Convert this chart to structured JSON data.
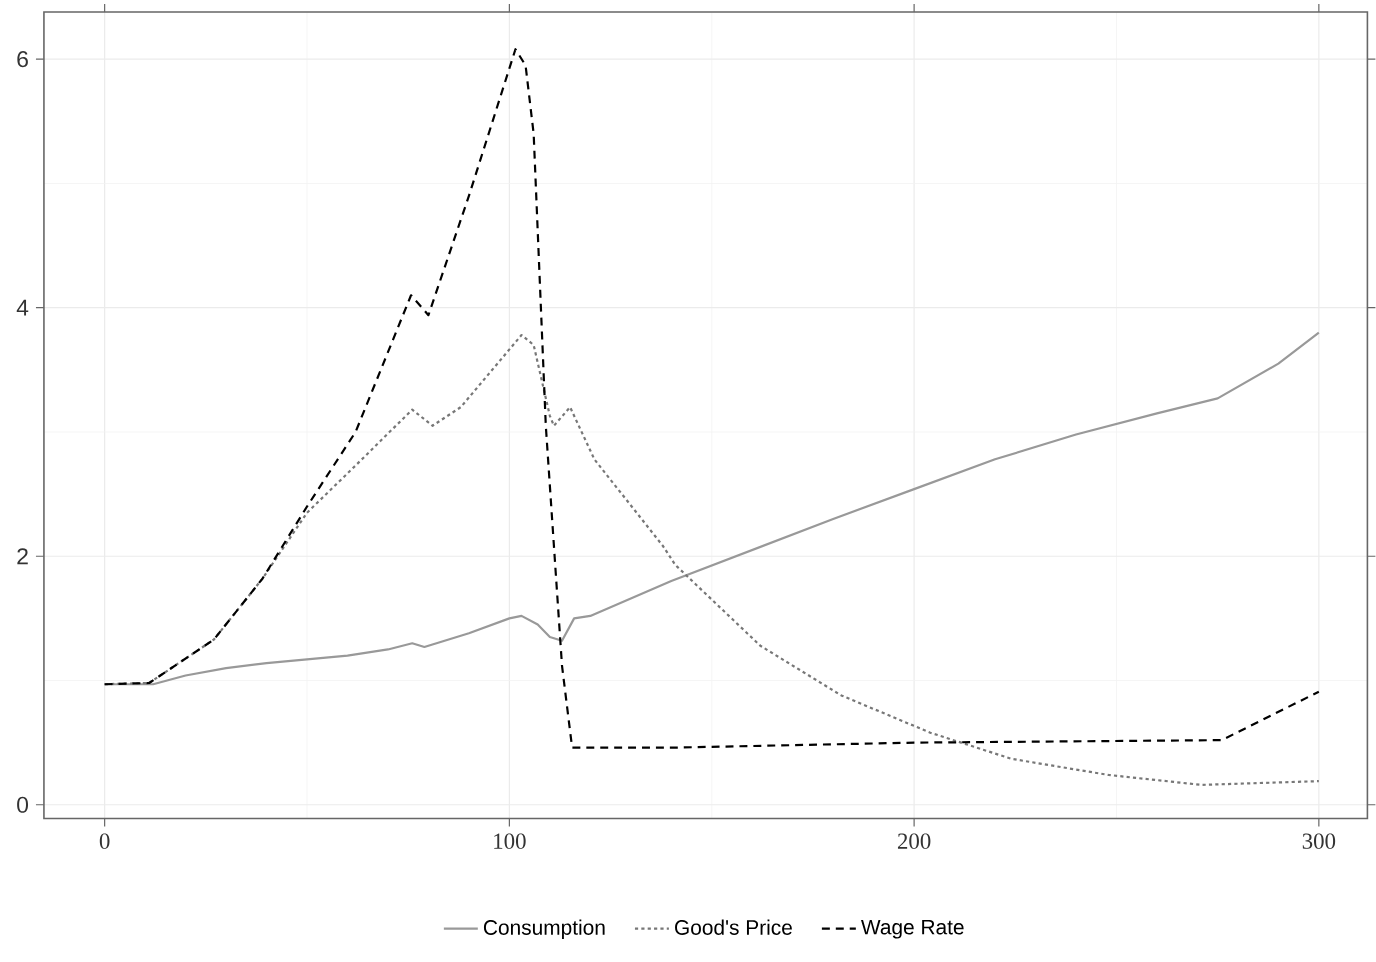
{
  "chart_data": {
    "type": "line",
    "xlim": [
      -15,
      312
    ],
    "ylim": [
      -0.11,
      6.38
    ],
    "xticks": [
      0,
      100,
      200,
      300
    ],
    "yticks": [
      0,
      2,
      4,
      6
    ],
    "grid": true,
    "legend": "bottom",
    "series": [
      {
        "name": "Consumption",
        "color": "#999999",
        "line_style": "solid",
        "x": [
          0,
          12,
          20,
          30,
          40,
          50,
          60,
          70,
          76,
          79,
          90,
          100,
          103,
          107,
          110,
          113,
          116,
          120,
          140,
          160,
          180,
          200,
          220,
          240,
          260,
          275,
          290,
          300
        ],
        "values": [
          0.97,
          0.97,
          1.04,
          1.1,
          1.14,
          1.17,
          1.2,
          1.25,
          1.3,
          1.27,
          1.38,
          1.5,
          1.52,
          1.45,
          1.35,
          1.32,
          1.5,
          1.52,
          1.8,
          2.05,
          2.3,
          2.54,
          2.78,
          2.98,
          3.15,
          3.27,
          3.55,
          3.8
        ]
      },
      {
        "name": "Good's Price",
        "color": "#777777",
        "line_style": "dotted",
        "x": [
          0,
          11,
          27,
          39,
          50,
          62,
          76,
          81,
          88,
          103,
          106,
          110,
          111,
          115,
          121,
          138,
          141,
          162,
          182,
          204,
          224,
          248,
          271,
          300
        ],
        "values": [
          0.97,
          0.98,
          1.33,
          1.82,
          2.35,
          2.73,
          3.18,
          3.05,
          3.2,
          3.78,
          3.7,
          3.13,
          3.05,
          3.2,
          2.78,
          2.08,
          1.93,
          1.28,
          0.88,
          0.58,
          0.37,
          0.24,
          0.16,
          0.19
        ]
      },
      {
        "name": "Wage Rate",
        "color": "#000000",
        "line_style": "dashed",
        "x": [
          0,
          11,
          27,
          39,
          50,
          62,
          75.7,
          80,
          90,
          101.5,
          104,
          106,
          109,
          113,
          115.5,
          141,
          200,
          276,
          300
        ],
        "values": [
          0.97,
          0.98,
          1.33,
          1.82,
          2.4,
          3.0,
          4.1,
          3.94,
          4.9,
          6.08,
          5.95,
          5.4,
          3.05,
          1.12,
          0.46,
          0.46,
          0.5,
          0.52,
          0.91
        ]
      }
    ]
  }
}
